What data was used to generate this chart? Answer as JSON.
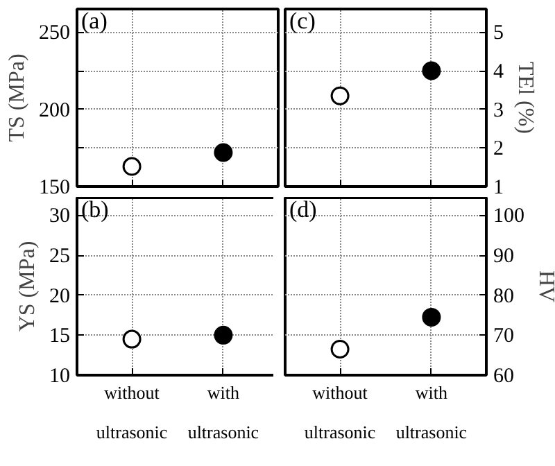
{
  "chart_data": [
    {
      "type": "scatter",
      "categories": [
        null,
        null
      ],
      "values": [
        163,
        172
      ],
      "colors": [
        "#ffffff",
        "#000000"
      ],
      "ylabel": "TS (MPa)",
      "ylim": [
        150,
        265
      ],
      "yticks": [
        150,
        {
          "value": 175,
          "label": null
        },
        200,
        {
          "value": 225,
          "label": null
        },
        250
      ],
      "grid": true,
      "marker": "circle",
      "annotations": [
        "(a)"
      ],
      "tick_labels": "y"
    },
    {
      "type": "scatter",
      "categories": [
        null,
        null
      ],
      "values": [
        3.35,
        4.0
      ],
      "colors": [
        "#ffffff",
        "#000000"
      ],
      "ylabel": "TEl (%)",
      "ylim": [
        1,
        5.6
      ],
      "yticks": [
        1,
        2,
        3,
        4,
        5
      ],
      "grid": true,
      "marker": "circle",
      "annotations": [
        "(c)"
      ],
      "tick_labels": "y"
    },
    {
      "type": "scatter",
      "categories": [
        "without ultrasonic",
        "with ultrasonic"
      ],
      "values": [
        14.5,
        15
      ],
      "colors": [
        "#ffffff",
        "#000000"
      ],
      "ylabel": "YS (MPa)",
      "ylim": [
        10,
        32.2
      ],
      "yticks": [
        10,
        15,
        20,
        25,
        30
      ],
      "grid": true,
      "marker": "circle",
      "annotations": [
        "(b)"
      ]
    },
    {
      "type": "scatter",
      "categories": [
        "without ultrasonic",
        "with ultrasonic"
      ],
      "values": [
        66.5,
        74.5
      ],
      "colors": [
        "#ffffff",
        "#000000"
      ],
      "ylabel": "HV",
      "ylim": [
        60,
        104.4
      ],
      "yticks": [
        60,
        70,
        80,
        90,
        100
      ],
      "grid": true,
      "marker": "circle",
      "annotations": [
        "(d)"
      ]
    }
  ]
}
